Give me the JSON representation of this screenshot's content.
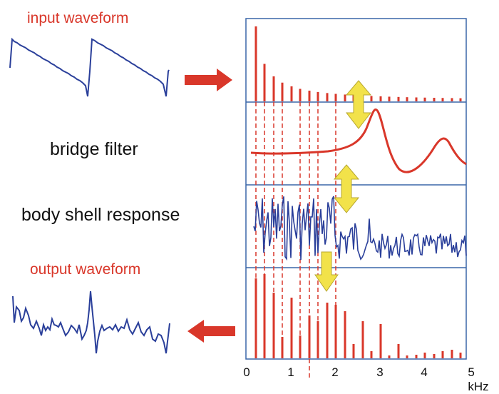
{
  "labels": {
    "input_waveform": "input waveform",
    "bridge_filter": "bridge filter",
    "body_shell_response": "body shell response",
    "output_waveform": "output waveform"
  },
  "axis": {
    "ticks": [
      "0",
      "1",
      "2",
      "3",
      "4",
      "5 kHz"
    ]
  },
  "colors": {
    "red": "#d9372a",
    "blue": "#2a3f9a",
    "yellow": "#f2e24a",
    "panel_border": "#3a66a8"
  },
  "icons": [
    "right-arrow-icon",
    "left-arrow-icon",
    "double-arrow-icon",
    "down-arrow-icon"
  ]
}
